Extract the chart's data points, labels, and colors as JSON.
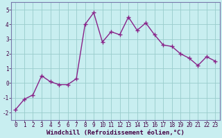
{
  "x": [
    0,
    1,
    2,
    3,
    4,
    5,
    6,
    7,
    8,
    9,
    10,
    11,
    12,
    13,
    14,
    15,
    16,
    17,
    18,
    19,
    20,
    21,
    22,
    23
  ],
  "y": [
    -1.8,
    -1.1,
    -0.8,
    0.5,
    0.1,
    -0.1,
    -0.1,
    0.3,
    4.0,
    4.8,
    2.8,
    3.5,
    3.3,
    4.5,
    3.6,
    4.1,
    3.3,
    2.6,
    2.5,
    2.0,
    1.7,
    1.2,
    1.8,
    1.5
  ],
  "line_color": "#882288",
  "marker": "+",
  "marker_size": 4,
  "marker_lw": 1.0,
  "line_width": 1.0,
  "background_color": "#c8eef0",
  "grid_color": "#99cccc",
  "xlabel": "Windchill (Refroidissement éolien,°C)",
  "xlim": [
    -0.5,
    23.5
  ],
  "ylim": [
    -2.5,
    5.5
  ],
  "yticks": [
    -2,
    -1,
    0,
    1,
    2,
    3,
    4,
    5
  ],
  "xticks": [
    0,
    1,
    2,
    3,
    4,
    5,
    6,
    7,
    8,
    9,
    10,
    11,
    12,
    13,
    14,
    15,
    16,
    17,
    18,
    19,
    20,
    21,
    22,
    23
  ],
  "tick_label_size": 5.5,
  "xlabel_size": 6.5,
  "spine_color": "#7777aa"
}
